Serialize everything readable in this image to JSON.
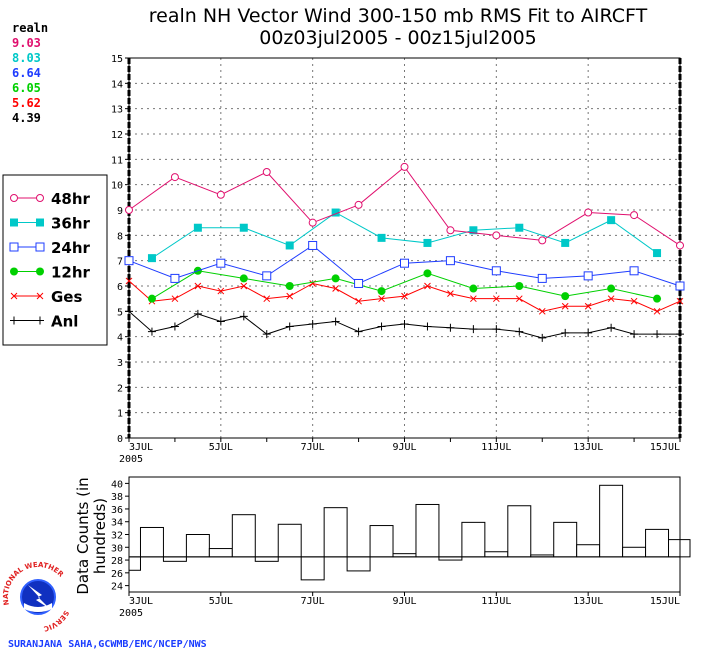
{
  "chart_data": [
    {
      "type": "line",
      "title": "realn NH Vector Wind 300-150 mb RMS Fit to AIRCFT",
      "subtitle": "00z03jul2005 - 00z15jul2005",
      "xlabel": "",
      "ylabel": "",
      "xlim": [
        3,
        15
      ],
      "ylim": [
        0,
        15
      ],
      "x_tick_labels": [
        "3JUL",
        "5JUL",
        "7JUL",
        "9JUL",
        "11JUL",
        "13JUL",
        "15JUL"
      ],
      "x_tick_values": [
        3,
        5,
        7,
        9,
        11,
        13,
        15
      ],
      "x_year_label": "2005",
      "y_ticks": [
        0,
        1,
        2,
        3,
        4,
        5,
        6,
        7,
        8,
        9,
        10,
        11,
        12,
        13,
        14,
        15
      ],
      "grid": true,
      "legend_position": "left",
      "stats_header": "realn",
      "series": [
        {
          "name": "48hr",
          "color": "#e0106e",
          "marker": "open-circle",
          "mean": "9.03",
          "x": [
            3,
            4,
            5,
            6,
            7,
            8,
            9,
            10,
            11,
            12,
            13,
            14,
            15
          ],
          "values": [
            9.0,
            10.3,
            9.6,
            10.5,
            8.5,
            9.2,
            10.7,
            8.2,
            8.0,
            7.8,
            8.9,
            8.8,
            7.6
          ]
        },
        {
          "name": "36hr",
          "color": "#00c8c8",
          "marker": "filled-square",
          "mean": "8.03",
          "x": [
            3.5,
            4.5,
            5.5,
            6.5,
            7.5,
            8.5,
            9.5,
            10.5,
            11.5,
            12.5,
            13.5,
            14.5
          ],
          "values": [
            7.1,
            8.3,
            8.3,
            7.6,
            8.9,
            7.9,
            7.7,
            8.2,
            8.3,
            7.7,
            8.6,
            7.3
          ]
        },
        {
          "name": "24hr",
          "color": "#1e3cff",
          "marker": "open-square",
          "mean": "6.64",
          "x": [
            3,
            4,
            5,
            6,
            7,
            8,
            9,
            10,
            11,
            12,
            13,
            14,
            15
          ],
          "values": [
            7.0,
            6.3,
            6.9,
            6.4,
            7.6,
            6.1,
            6.9,
            7.0,
            6.6,
            6.3,
            6.4,
            6.6,
            6.0
          ]
        },
        {
          "name": "12hr",
          "color": "#00d000",
          "marker": "filled-circle",
          "mean": "6.05",
          "x": [
            3.5,
            4.5,
            5.5,
            6.5,
            7.5,
            8.5,
            9.5,
            10.5,
            11.5,
            12.5,
            13.5,
            14.5
          ],
          "values": [
            5.5,
            6.6,
            6.3,
            6.0,
            6.3,
            5.8,
            6.5,
            5.9,
            6.0,
            5.6,
            5.9,
            5.5
          ]
        },
        {
          "name": "Ges",
          "color": "#ff0000",
          "marker": "x",
          "mean": "5.62",
          "x": [
            3,
            3.5,
            4,
            4.5,
            5,
            5.5,
            6,
            6.5,
            7,
            7.5,
            8,
            8.5,
            9,
            9.5,
            10,
            10.5,
            11,
            11.5,
            12,
            12.5,
            13,
            13.5,
            14,
            14.5,
            15
          ],
          "values": [
            6.2,
            5.4,
            5.5,
            6.0,
            5.8,
            6.0,
            5.5,
            5.6,
            6.1,
            5.9,
            5.4,
            5.5,
            5.6,
            6.0,
            5.7,
            5.5,
            5.5,
            5.5,
            5.0,
            5.2,
            5.2,
            5.5,
            5.4,
            5.0,
            5.4
          ]
        },
        {
          "name": "Anl",
          "color": "#000000",
          "marker": "plus",
          "mean": "4.39",
          "x": [
            3,
            3.5,
            4,
            4.5,
            5,
            5.5,
            6,
            6.5,
            7,
            7.5,
            8,
            8.5,
            9,
            9.5,
            10,
            10.5,
            11,
            11.5,
            12,
            12.5,
            13,
            13.5,
            14,
            14.5,
            15
          ],
          "values": [
            5.0,
            4.2,
            4.4,
            4.9,
            4.6,
            4.8,
            4.1,
            4.4,
            4.5,
            4.6,
            4.2,
            4.4,
            4.5,
            4.4,
            4.35,
            4.3,
            4.3,
            4.2,
            3.95,
            4.15,
            4.15,
            4.35,
            4.1,
            4.1,
            4.1
          ]
        }
      ]
    },
    {
      "type": "bar",
      "title": "",
      "ylabel": "Data Counts (in hundreds)",
      "xlim": [
        3,
        15
      ],
      "ylim": [
        23,
        41
      ],
      "y_ticks": [
        24,
        26,
        28,
        30,
        32,
        34,
        36,
        38,
        40
      ],
      "x_tick_labels": [
        "3JUL",
        "5JUL",
        "7JUL",
        "9JUL",
        "11JUL",
        "13JUL",
        "15JUL"
      ],
      "x_tick_values": [
        3,
        5,
        7,
        9,
        11,
        13,
        15
      ],
      "x_year_label": "2005",
      "reference_line": 28.5,
      "x": [
        3,
        3.5,
        4,
        4.5,
        5,
        5.5,
        6,
        6.5,
        7,
        7.5,
        8,
        8.5,
        9,
        9.5,
        10,
        10.5,
        11,
        11.5,
        12,
        12.5,
        13,
        13.5,
        14,
        14.5,
        15
      ],
      "values": [
        26.4,
        33.1,
        27.8,
        32.0,
        29.8,
        35.1,
        27.8,
        33.6,
        24.9,
        36.2,
        26.3,
        33.4,
        29.0,
        36.7,
        28.0,
        33.9,
        29.3,
        36.5,
        28.8,
        33.9,
        30.4,
        39.7,
        30.0,
        32.8,
        31.2
      ]
    }
  ],
  "logo": {
    "text": "NATIONAL WEATHER SERVICE"
  },
  "credit": "SURANJANA SAHA,GCWMB/EMC/NCEP/NWS"
}
